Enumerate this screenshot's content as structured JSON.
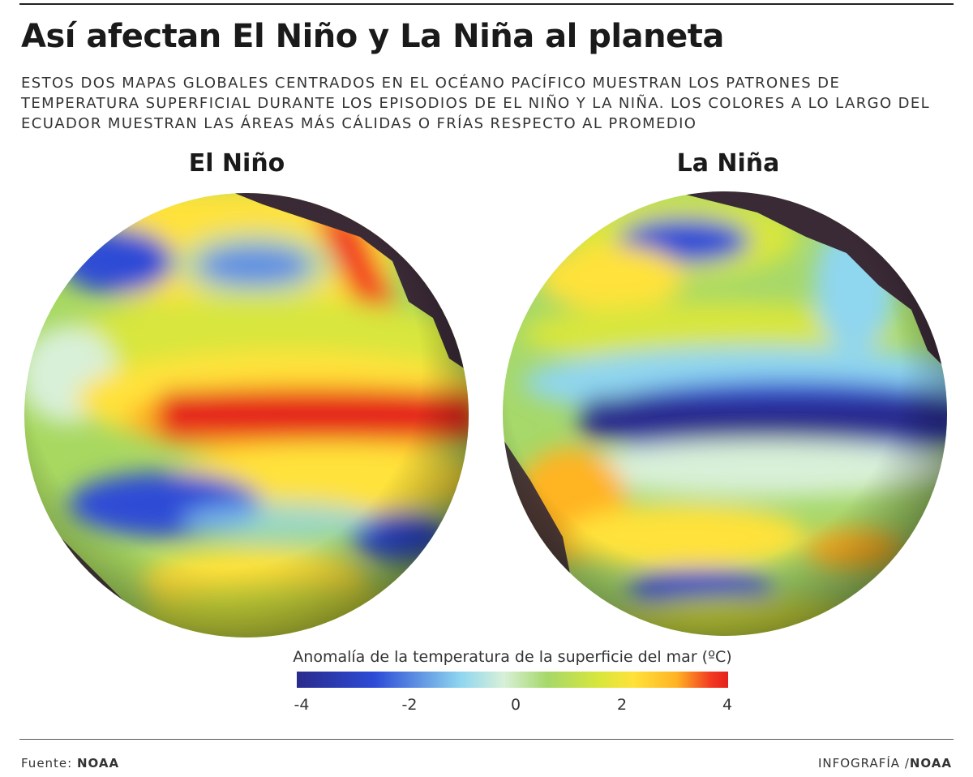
{
  "header": {
    "title": "Así afectan El Niño y La Niña al planeta",
    "subtitle": "ESTOS DOS MAPAS GLOBALES CENTRADOS EN EL OCÉANO PACÍFICO MUESTRAN LOS PATRONES DE TEMPERATURA SUPERFICIAL DURANTE LOS EPISODIOS DE EL NIÑO Y LA NIÑA. LOS COLORES A LO LARGO DEL ECUADOR MUESTRAN LAS ÁREAS MÁS CÁLIDAS O FRÍAS RESPECTO AL PROMEDIO"
  },
  "maps": [
    {
      "label": "El Niño",
      "equatorial_anomaly": "warm"
    },
    {
      "label": "La Niña",
      "equatorial_anomaly": "cold"
    }
  ],
  "legend": {
    "title": "Anomalía de la temperatura de la superficie del mar (ºC)",
    "ticks": [
      "-4",
      "-2",
      "0",
      "2",
      "4"
    ],
    "colors": [
      "#2a2a8c",
      "#2d4bd6",
      "#8fd6ef",
      "#d8f0d8",
      "#a6d86a",
      "#d8e63c",
      "#ffe23a",
      "#ffb424",
      "#f23a22"
    ]
  },
  "footer": {
    "source_label": "Fuente:",
    "source_value": "NOAA",
    "credit_label": "INFOGRAFÍA /",
    "credit_value": "NOAA"
  }
}
